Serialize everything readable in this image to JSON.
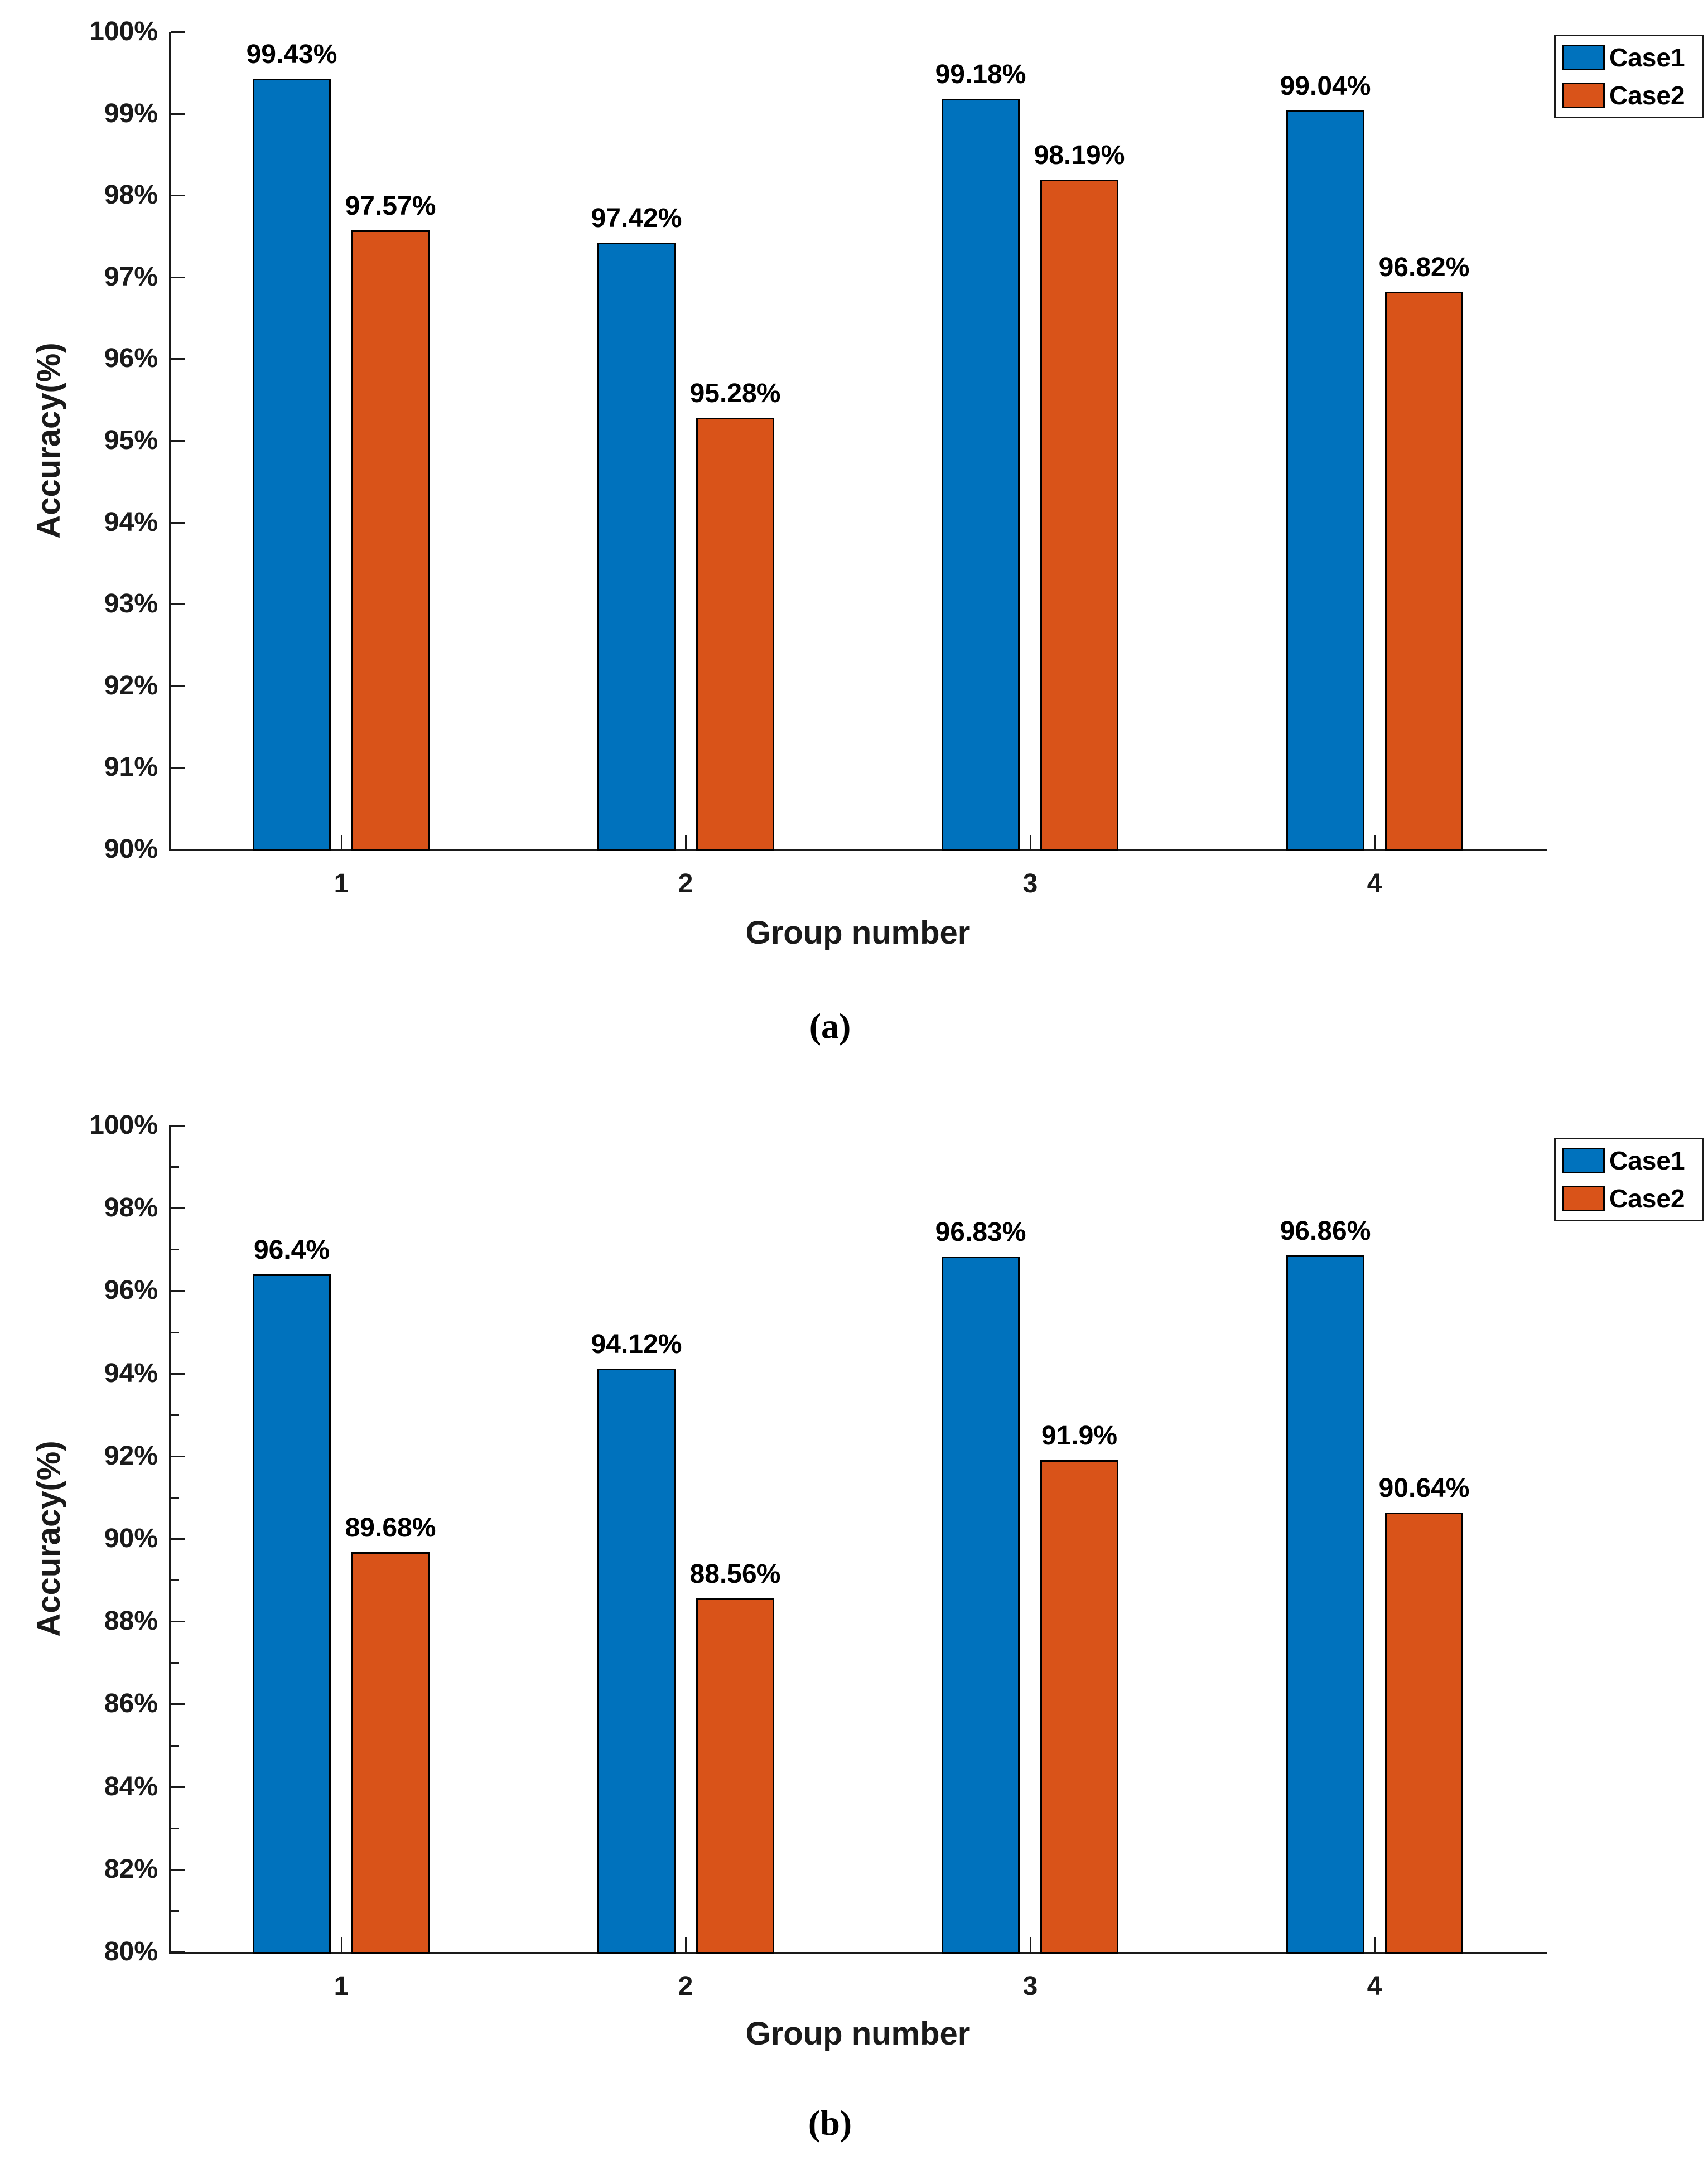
{
  "figure": {
    "background": "#ffffff",
    "accent_colors": {
      "case1_blue": "#0072BD",
      "case2_orange": "#D95319",
      "axis_color": "#1a1a1a"
    }
  },
  "chart_data": [
    {
      "type": "bar",
      "title": "",
      "caption": "(a)",
      "xlabel": "Group number",
      "ylabel": "Accuracy(%)",
      "categories": [
        "1",
        "2",
        "3",
        "4"
      ],
      "series": [
        {
          "name": "Case1",
          "color": "#0072BD",
          "values": [
            99.43,
            97.42,
            99.18,
            99.04
          ],
          "labels": [
            "99.43%",
            "97.42%",
            "99.18%",
            "99.04%"
          ]
        },
        {
          "name": "Case2",
          "color": "#D95319",
          "values": [
            97.57,
            95.28,
            98.19,
            96.82
          ],
          "labels": [
            "97.57%",
            "95.28%",
            "98.19%",
            "96.82%"
          ]
        }
      ],
      "ylim": [
        90,
        100
      ],
      "ytick_step": 1,
      "minor_tick_step": 0,
      "ytick_labels": [
        "90%",
        "91%",
        "92%",
        "93%",
        "94%",
        "95%",
        "96%",
        "97%",
        "98%",
        "99%",
        "100%"
      ],
      "grid": false,
      "legend": {
        "position": "top-right-outside",
        "entries": [
          "Case1",
          "Case2"
        ]
      }
    },
    {
      "type": "bar",
      "title": "",
      "caption": "(b)",
      "xlabel": "Group number",
      "ylabel": "Accuracy(%)",
      "categories": [
        "1",
        "2",
        "3",
        "4"
      ],
      "series": [
        {
          "name": "Case1",
          "color": "#0072BD",
          "values": [
            96.4,
            94.12,
            96.83,
            96.86
          ],
          "labels": [
            "96.4%",
            "94.12%",
            "96.83%",
            "96.86%"
          ]
        },
        {
          "name": "Case2",
          "color": "#D95319",
          "values": [
            89.68,
            88.56,
            91.9,
            90.64
          ],
          "labels": [
            "89.68%",
            "88.56%",
            "91.9%",
            "90.64%"
          ]
        }
      ],
      "ylim": [
        80,
        100
      ],
      "ytick_step": 2,
      "minor_tick_step": 1,
      "ytick_labels": [
        "80%",
        "82%",
        "84%",
        "86%",
        "88%",
        "90%",
        "92%",
        "94%",
        "96%",
        "98%",
        "100%"
      ],
      "grid": false,
      "legend": {
        "position": "top-right-outside",
        "entries": [
          "Case1",
          "Case2"
        ]
      }
    }
  ]
}
